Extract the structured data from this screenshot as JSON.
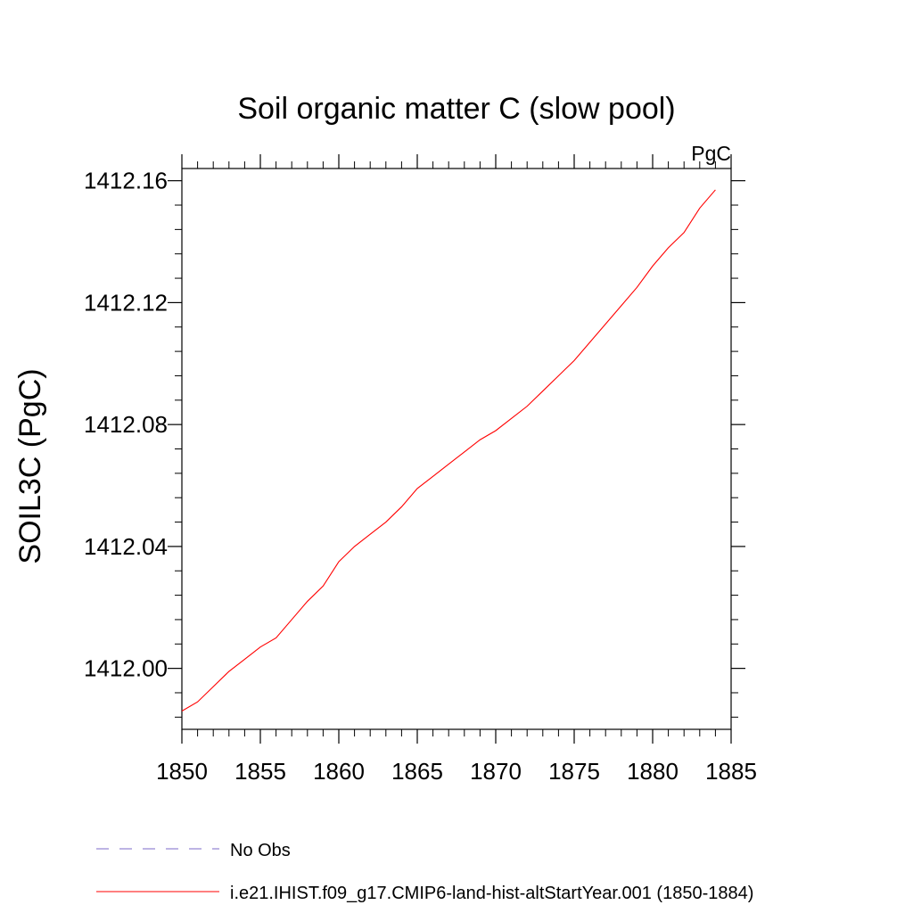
{
  "chart_data": {
    "type": "line",
    "title": "Soil organic matter C (slow pool)",
    "units": "PgC",
    "xlabel": "",
    "ylabel": "SOIL3C  (PgC)",
    "xlim": [
      1850,
      1885
    ],
    "ylim": [
      1411.98,
      1412.164
    ],
    "x_ticks": [
      1850,
      1855,
      1860,
      1865,
      1870,
      1875,
      1880,
      1885
    ],
    "x_tick_labels": [
      "1850",
      "1855",
      "1860",
      "1865",
      "1870",
      "1875",
      "1880",
      "1885"
    ],
    "y_ticks": [
      1412.0,
      1412.04,
      1412.08,
      1412.12,
      1412.16
    ],
    "y_tick_labels": [
      "1412.00",
      "1412.04",
      "1412.08",
      "1412.12",
      "1412.16"
    ],
    "grid": false,
    "legend_position": "bottom",
    "series": [
      {
        "name": "No Obs",
        "color": "#7b68c8",
        "dash": "dashed",
        "x": [],
        "y": []
      },
      {
        "name": "i.e21.IHIST.f09_g17.CMIP6-land-hist-altStartYear.001 (1850-1884)",
        "color": "#ff0000",
        "dash": "solid",
        "x": [
          1850,
          1851,
          1852,
          1853,
          1854,
          1855,
          1856,
          1857,
          1858,
          1859,
          1860,
          1861,
          1862,
          1863,
          1864,
          1865,
          1866,
          1867,
          1868,
          1869,
          1870,
          1871,
          1872,
          1873,
          1874,
          1875,
          1876,
          1877,
          1878,
          1879,
          1880,
          1881,
          1882,
          1883,
          1884
        ],
        "y": [
          1411.986,
          1411.989,
          1411.994,
          1411.999,
          1412.003,
          1412.007,
          1412.01,
          1412.016,
          1412.022,
          1412.027,
          1412.035,
          1412.04,
          1412.044,
          1412.048,
          1412.053,
          1412.059,
          1412.063,
          1412.067,
          1412.071,
          1412.075,
          1412.078,
          1412.082,
          1412.086,
          1412.091,
          1412.096,
          1412.101,
          1412.107,
          1412.113,
          1412.119,
          1412.125,
          1412.132,
          1412.138,
          1412.143,
          1412.151,
          1412.157
        ]
      }
    ]
  }
}
